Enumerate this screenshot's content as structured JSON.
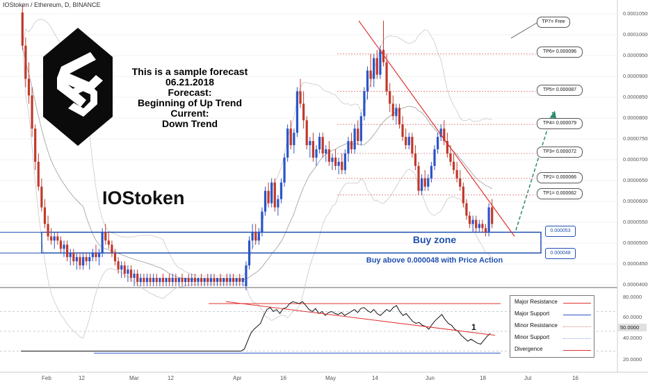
{
  "header": {
    "symbol_title": "IOStoken / Ethereum, D, BINANCE"
  },
  "annotation": {
    "lines": [
      "This is a sample forecast",
      "06.21.2018",
      "Forecast:",
      "Beginning of Up Trend",
      "Current:",
      "Down Trend"
    ]
  },
  "token_name": "IOStoken",
  "buy_zone": {
    "label": "Buy zone",
    "instruction": "Buy above 0.000048 with Price Action",
    "upper": "0.000053",
    "lower": "0.000048"
  },
  "targets": [
    {
      "label": "TP7= Free"
    },
    {
      "label": "TP6= 0.000096"
    },
    {
      "label": "TP5= 0.000087"
    },
    {
      "label": "TP4= 0.000079"
    },
    {
      "label": "TP3= 0.000072"
    },
    {
      "label": "TP2= 0.000066"
    },
    {
      "label": "TP1= 0.000062"
    }
  ],
  "price_axis": [
    "0.00010500",
    "0.00010000",
    "0.00009500",
    "0.00009000",
    "0.00008500",
    "0.00008000",
    "0.00007500",
    "0.00007000",
    "0.00006500",
    "0.00006000",
    "0.00005500",
    "0.00005000",
    "0.00004500",
    "0.00004000"
  ],
  "time_axis": [
    "Feb",
    "12",
    "Mar",
    "12",
    "Apr",
    "16",
    "May",
    "14",
    "Jun",
    "18",
    "Jul",
    "16"
  ],
  "indicator": {
    "axis": [
      "80.0000",
      "60.0000",
      "40.0000",
      "20.0000"
    ],
    "current_value": "50.0000",
    "divergence_marker": "1",
    "legend": [
      {
        "label": "Major Resistance",
        "color": "#e03030"
      },
      {
        "label": "Major Support",
        "color": "#2a55c8"
      },
      {
        "label": "Minor Resistance",
        "color": "#e07a7a"
      },
      {
        "label": "Minor Support",
        "color": "#8aa6e0"
      },
      {
        "label": "Divergence",
        "color": "#e03030"
      }
    ]
  },
  "colors": {
    "bull": "#2a55c8",
    "bear": "#c0392b",
    "zone": "#1f4fb0",
    "forecast": "#2e8b6e"
  },
  "chart_data": [
    {
      "type": "candlestick",
      "title": "IOStoken / Ethereum, D, BINANCE",
      "ylim": [
        4e-05,
        0.000106
      ],
      "x_range": [
        "2018-01-20",
        "2018-07-21"
      ],
      "horizontal_levels": [
        9.6e-05,
        8.7e-05,
        7.9e-05,
        7.2e-05,
        6.6e-05,
        6.2e-05,
        5.3e-05,
        4.8e-05
      ],
      "ohlc": [
        [
          0.000106,
          0.000108,
          9.7e-05,
          9.8e-05
        ],
        [
          9.8e-05,
          0.0001,
          8.8e-05,
          9e-05
        ],
        [
          9e-05,
          9.4e-05,
          8.4e-05,
          8.6e-05
        ],
        [
          8.6e-05,
          8.8e-05,
          7.6e-05,
          7.8e-05
        ],
        [
          7.8e-05,
          7.9e-05,
          6.8e-05,
          7e-05
        ],
        [
          7e-05,
          7.2e-05,
          6.3e-05,
          6.4e-05
        ],
        [
          6.4e-05,
          6.6e-05,
          5.8e-05,
          5.9e-05
        ],
        [
          5.9e-05,
          6.1e-05,
          5.4e-05,
          5.5e-05
        ],
        [
          5.5e-05,
          5.7e-05,
          5.1e-05,
          5.2e-05
        ],
        [
          5.2e-05,
          5.4e-05,
          5e-05,
          5.1e-05
        ],
        [
          5.1e-05,
          5.3e-05,
          4.9e-05,
          5.2e-05
        ],
        [
          5.2e-05,
          5.3e-05,
          5e-05,
          5.1e-05
        ],
        [
          5.1e-05,
          5.2e-05,
          4.8e-05,
          4.9e-05
        ],
        [
          4.9e-05,
          5.1e-05,
          4.7e-05,
          5e-05
        ],
        [
          5e-05,
          5.1e-05,
          4.6e-05,
          4.7e-05
        ],
        [
          4.7e-05,
          4.9e-05,
          4.5e-05,
          4.8e-05
        ],
        [
          4.8e-05,
          4.9e-05,
          4.5e-05,
          4.6e-05
        ],
        [
          4.6e-05,
          4.8e-05,
          4.4e-05,
          4.7e-05
        ],
        [
          4.7e-05,
          4.8e-05,
          4.4e-05,
          4.5e-05
        ],
        [
          4.5e-05,
          4.8e-05,
          4.4e-05,
          4.7e-05
        ],
        [
          4.7e-05,
          4.8e-05,
          4.5e-05,
          4.6e-05
        ],
        [
          4.6e-05,
          4.8e-05,
          4.4e-05,
          4.7e-05
        ],
        [
          4.7e-05,
          4.9e-05,
          4.6e-05,
          4.8e-05
        ],
        [
          4.8e-05,
          5e-05,
          4.6e-05,
          4.7e-05
        ],
        [
          4.7e-05,
          4.9e-05,
          4.5e-05,
          4.8e-05
        ],
        [
          4.8e-05,
          5.4e-05,
          4.7e-05,
          5.3e-05
        ],
        [
          5.3e-05,
          5.5e-05,
          5e-05,
          5.1e-05
        ],
        [
          5.1e-05,
          5.3e-05,
          4.9e-05,
          5e-05
        ],
        [
          5e-05,
          5.1e-05,
          4.7e-05,
          4.8e-05
        ],
        [
          4.8e-05,
          4.9e-05,
          4.5e-05,
          4.6e-05
        ],
        [
          4.6e-05,
          4.7e-05,
          4.3e-05,
          4.4e-05
        ],
        [
          4.4e-05,
          4.6e-05,
          4.2e-05,
          4.5e-05
        ],
        [
          4.5e-05,
          4.6e-05,
          4.2e-05,
          4.3e-05
        ],
        [
          4.3e-05,
          4.5e-05,
          4.1e-05,
          4.4e-05
        ],
        [
          4.4e-05,
          4.5e-05,
          4.1e-05,
          4.2e-05
        ],
        [
          4.2e-05,
          4.4e-05,
          4e-05,
          4.3e-05
        ],
        [
          4.3e-05,
          4.4e-05,
          4e-05,
          4.1e-05
        ],
        [
          4.1e-05,
          4.3e-05,
          4e-05,
          4.2e-05
        ],
        [
          4.2e-05,
          4.3e-05,
          4e-05,
          4.1e-05
        ],
        [
          4.1e-05,
          4.3e-05,
          4e-05,
          4.2e-05
        ],
        [
          4.2e-05,
          4.3e-05,
          4e-05,
          4.1e-05
        ],
        [
          4.1e-05,
          4.3e-05,
          4e-05,
          4.2e-05
        ],
        [
          4.2e-05,
          4.3e-05,
          4e-05,
          4.1e-05
        ],
        [
          4.1e-05,
          4.2e-05,
          4e-05,
          4.2e-05
        ],
        [
          4.2e-05,
          4.3e-05,
          4e-05,
          4.1e-05
        ],
        [
          4.1e-05,
          4.2e-05,
          4e-05,
          4.2e-05
        ],
        [
          4.2e-05,
          4.3e-05,
          4e-05,
          4.1e-05
        ],
        [
          4.1e-05,
          4.3e-05,
          4e-05,
          4.2e-05
        ],
        [
          4.2e-05,
          4.3e-05,
          4e-05,
          4.1e-05
        ],
        [
          4.1e-05,
          4.2e-05,
          4e-05,
          4.2e-05
        ],
        [
          4.2e-05,
          4.3e-05,
          4e-05,
          4.1e-05
        ],
        [
          4.1e-05,
          4.2e-05,
          4e-05,
          4.2e-05
        ],
        [
          4.2e-05,
          4.3e-05,
          4e-05,
          4.1e-05
        ],
        [
          4.1e-05,
          4.3e-05,
          4e-05,
          4.2e-05
        ],
        [
          4.2e-05,
          4.3e-05,
          4e-05,
          4.1e-05
        ],
        [
          4.1e-05,
          4.2e-05,
          4e-05,
          4.2e-05
        ],
        [
          4.2e-05,
          4.3e-05,
          4e-05,
          4.1e-05
        ],
        [
          4.1e-05,
          4.2e-05,
          4e-05,
          4.2e-05
        ],
        [
          4.2e-05,
          4.3e-05,
          4e-05,
          4.1e-05
        ],
        [
          4.1e-05,
          4.3e-05,
          4e-05,
          4.2e-05
        ],
        [
          4.2e-05,
          4.3e-05,
          4e-05,
          4.1e-05
        ],
        [
          4.1e-05,
          4.2e-05,
          4e-05,
          4.2e-05
        ],
        [
          4.2e-05,
          4.3e-05,
          4e-05,
          4.1e-05
        ],
        [
          4.1e-05,
          4.2e-05,
          4e-05,
          4.2e-05
        ],
        [
          4.2e-05,
          4.3e-05,
          4e-05,
          4.1e-05
        ],
        [
          4.1e-05,
          4.3e-05,
          4e-05,
          4.2e-05
        ],
        [
          4.2e-05,
          4.3e-05,
          4e-05,
          4.1e-05
        ],
        [
          4.1e-05,
          4.2e-05,
          4e-05,
          4.2e-05
        ],
        [
          4.2e-05,
          4.3e-05,
          4e-05,
          4.1e-05
        ],
        [
          4.1e-05,
          4.2e-05,
          4e-05,
          4.2e-05
        ],
        [
          4e-05,
          4.6e-05,
          3.9e-05,
          4.5e-05
        ],
        [
          4.5e-05,
          5.2e-05,
          4.4e-05,
          5.1e-05
        ],
        [
          5.1e-05,
          5.5e-05,
          4.9e-05,
          5.3e-05
        ],
        [
          5.3e-05,
          5.5e-05,
          5e-05,
          5.1e-05
        ],
        [
          5.1e-05,
          5.4e-05,
          5e-05,
          5.3e-05
        ],
        [
          5.3e-05,
          5.9e-05,
          5.2e-05,
          5.8e-05
        ],
        [
          5.8e-05,
          6.4e-05,
          5.7e-05,
          6.3e-05
        ],
        [
          6.3e-05,
          6.5e-05,
          5.9e-05,
          6e-05
        ],
        [
          6e-05,
          6.6e-05,
          5.9e-05,
          6.5e-05
        ],
        [
          6.5e-05,
          6.6e-05,
          5.8e-05,
          5.9e-05
        ],
        [
          5.9e-05,
          6.2e-05,
          5.7e-05,
          6.1e-05
        ],
        [
          6.1e-05,
          6.6e-05,
          6e-05,
          6.5e-05
        ],
        [
          6.5e-05,
          7.2e-05,
          6.4e-05,
          7.1e-05
        ],
        [
          7.1e-05,
          7.9e-05,
          7e-05,
          7.8e-05
        ],
        [
          7.8e-05,
          8e-05,
          7.3e-05,
          7.4e-05
        ],
        [
          7.4e-05,
          7.8e-05,
          7.2e-05,
          7.7e-05
        ],
        [
          7.7e-05,
          8.8e-05,
          7.6e-05,
          8.7e-05
        ],
        [
          8.7e-05,
          9e-05,
          8.3e-05,
          8.4e-05
        ],
        [
          8.4e-05,
          8.7e-05,
          7.8e-05,
          8e-05
        ],
        [
          8e-05,
          8.1e-05,
          7.3e-05,
          7.4e-05
        ],
        [
          7.4e-05,
          7.6e-05,
          7.1e-05,
          7.5e-05
        ],
        [
          7.5e-05,
          7.7e-05,
          7e-05,
          7.1e-05
        ],
        [
          7.1e-05,
          7.4e-05,
          6.9e-05,
          7.3e-05
        ],
        [
          7.3e-05,
          7.7e-05,
          7.2e-05,
          7.6e-05
        ],
        [
          7.6e-05,
          7.7e-05,
          7.1e-05,
          7.2e-05
        ],
        [
          7.2e-05,
          7.4e-05,
          7e-05,
          7.3e-05
        ],
        [
          7.3e-05,
          7.5e-05,
          6.9e-05,
          7e-05
        ],
        [
          7e-05,
          7.2e-05,
          6.8e-05,
          7.1e-05
        ],
        [
          7.1e-05,
          7.3e-05,
          6.8e-05,
          6.9e-05
        ],
        [
          6.9e-05,
          7.1e-05,
          6.7e-05,
          7e-05
        ],
        [
          7e-05,
          7.2e-05,
          6.7e-05,
          6.8e-05
        ],
        [
          6.8e-05,
          7.3e-05,
          6.7e-05,
          7.2e-05
        ],
        [
          7.2e-05,
          7.6e-05,
          7e-05,
          7.5e-05
        ],
        [
          7.5e-05,
          7.7e-05,
          7.2e-05,
          7.3e-05
        ],
        [
          7.3e-05,
          7.9e-05,
          7.2e-05,
          7.8e-05
        ],
        [
          7.8e-05,
          8e-05,
          7.4e-05,
          7.5e-05
        ],
        [
          7.5e-05,
          8.2e-05,
          7.4e-05,
          8.1e-05
        ],
        [
          8.1e-05,
          8.8e-05,
          8e-05,
          8.7e-05
        ],
        [
          8.7e-05,
          9.3e-05,
          8.5e-05,
          9.2e-05
        ],
        [
          9.2e-05,
          9.6e-05,
          8.8e-05,
          9e-05
        ],
        [
          9e-05,
          9.6e-05,
          8.8e-05,
          9.5e-05
        ],
        [
          9.5e-05,
          9.7e-05,
          9e-05,
          9.1e-05
        ],
        [
          9.1e-05,
          9.8e-05,
          9e-05,
          9.7e-05
        ],
        [
          9.7e-05,
          0.000104,
          9.3e-05,
          9.4e-05
        ],
        [
          9.4e-05,
          9.6e-05,
          8.6e-05,
          8.7e-05
        ],
        [
          8.7e-05,
          8.9e-05,
          8.2e-05,
          8.4e-05
        ],
        [
          8.4e-05,
          8.6e-05,
          8e-05,
          8.1e-05
        ],
        [
          8.1e-05,
          8.4e-05,
          7.9e-05,
          8.3e-05
        ],
        [
          8.3e-05,
          8.4e-05,
          7.8e-05,
          7.9e-05
        ],
        [
          7.9e-05,
          8.1e-05,
          7.5e-05,
          7.6e-05
        ],
        [
          7.6e-05,
          7.8e-05,
          7.3e-05,
          7.4e-05
        ],
        [
          7.4e-05,
          7.7e-05,
          7.3e-05,
          7.6e-05
        ],
        [
          7.6e-05,
          7.7e-05,
          7.1e-05,
          7.2e-05
        ],
        [
          7.2e-05,
          7.4e-05,
          6.8e-05,
          6.9e-05
        ],
        [
          6.9e-05,
          7e-05,
          6.2e-05,
          6.3e-05
        ],
        [
          6.3e-05,
          6.7e-05,
          6.2e-05,
          6.6e-05
        ],
        [
          6.6e-05,
          6.8e-05,
          6.3e-05,
          6.4e-05
        ],
        [
          6.4e-05,
          6.7e-05,
          6.3e-05,
          6.6e-05
        ],
        [
          6.6e-05,
          7e-05,
          6.5e-05,
          6.9e-05
        ],
        [
          6.9e-05,
          7.4e-05,
          6.8e-05,
          7.3e-05
        ],
        [
          7.3e-05,
          7.7e-05,
          7.2e-05,
          7.6e-05
        ],
        [
          7.6e-05,
          7.9e-05,
          7.5e-05,
          7.8e-05
        ],
        [
          7.8e-05,
          8e-05,
          7.4e-05,
          7.5e-05
        ],
        [
          7.5e-05,
          7.7e-05,
          7.1e-05,
          7.2e-05
        ],
        [
          7.2e-05,
          7.4e-05,
          6.9e-05,
          7e-05
        ],
        [
          7e-05,
          7.2e-05,
          6.7e-05,
          6.8e-05
        ],
        [
          6.8e-05,
          7e-05,
          6.5e-05,
          6.6e-05
        ],
        [
          6.6e-05,
          6.8e-05,
          6.3e-05,
          6.4e-05
        ],
        [
          6.4e-05,
          6.5e-05,
          5.9e-05,
          6e-05
        ],
        [
          6e-05,
          6.1e-05,
          5.6e-05,
          5.7e-05
        ],
        [
          5.7e-05,
          5.8e-05,
          5.4e-05,
          5.5e-05
        ],
        [
          5.5e-05,
          5.7e-05,
          5.3e-05,
          5.6e-05
        ],
        [
          5.6e-05,
          5.7e-05,
          5.3e-05,
          5.4e-05
        ],
        [
          5.4e-05,
          5.6e-05,
          5.3e-05,
          5.5e-05
        ],
        [
          5.5e-05,
          5.6e-05,
          5.3e-05,
          5.4e-05
        ],
        [
          5.4e-05,
          5.5e-05,
          5.2e-05,
          5.3e-05
        ],
        [
          5.3e-05,
          6e-05,
          5.2e-05,
          5.9e-05
        ],
        [
          5.9e-05,
          6.1e-05,
          5.4e-05,
          5.5e-05
        ]
      ],
      "forecast_path": [
        {
          "date": "2018-06-22",
          "y": 5.35e-05
        },
        {
          "date": "2018-07-10",
          "y": 8.2e-05
        }
      ]
    },
    {
      "type": "line",
      "title": "",
      "ylim": [
        10,
        90
      ],
      "series": [
        {
          "values": [
            30,
            30,
            30,
            30,
            30,
            30,
            30,
            30,
            30,
            30,
            30,
            30,
            30,
            30,
            30,
            30,
            30,
            30,
            30,
            30,
            30,
            30,
            30,
            30,
            30,
            30,
            30,
            30,
            30,
            30,
            30,
            30,
            30,
            30,
            30,
            30,
            30,
            30,
            30,
            30,
            30,
            30,
            30,
            30,
            30,
            30,
            30,
            30,
            30,
            30,
            30,
            30,
            30,
            30,
            30,
            30,
            30,
            30,
            30,
            30,
            30,
            30,
            30,
            30,
            30,
            30,
            30,
            30,
            30,
            32,
            40,
            48,
            52,
            55,
            58,
            66,
            72,
            74,
            70,
            72,
            68,
            73,
            74,
            78,
            80,
            79,
            78,
            80,
            76,
            72,
            70,
            73,
            68,
            70,
            66,
            69,
            70,
            68,
            67,
            69,
            66,
            68,
            70,
            72,
            69,
            73,
            74,
            71,
            69,
            72,
            68,
            66,
            69,
            72,
            70,
            74,
            76,
            70,
            66,
            68,
            64,
            60,
            58,
            59,
            56,
            55,
            52,
            57,
            61,
            64,
            67,
            62,
            58,
            56,
            52,
            50,
            46,
            43,
            40,
            42,
            40,
            38,
            37,
            41,
            45,
            48
          ]
        }
      ],
      "levels": [
        {
          "name": "Major Resistance",
          "value": 78
        },
        {
          "name": "Major Support",
          "value": 28
        }
      ],
      "divergence": {
        "from": 80,
        "to": 46
      }
    }
  ]
}
